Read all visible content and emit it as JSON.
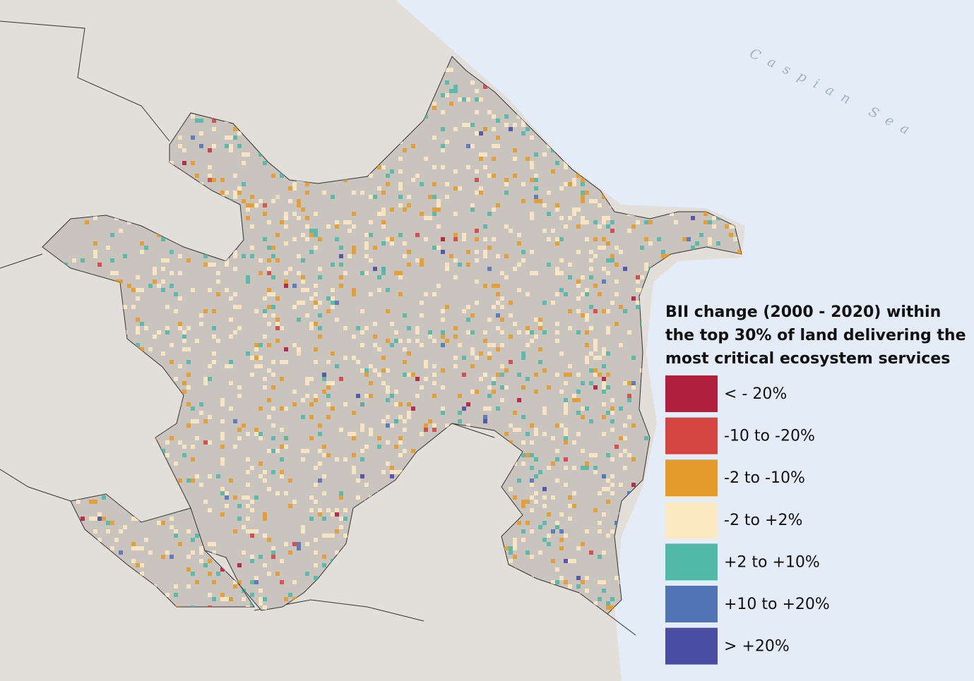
{
  "map": {
    "sea_label": "Caspian Sea",
    "legend": {
      "title": [
        "BII change (2000 - 2020) within",
        "the top 30% of land delivering the",
        "most critical ecosystem services"
      ],
      "items": [
        {
          "label": "< - 20%",
          "color": "#b01f3e"
        },
        {
          "label": "-10 to -20%",
          "color": "#d44541"
        },
        {
          "label": "-2 to -10%",
          "color": "#e59b2a"
        },
        {
          "label": "-2 to +2%",
          "color": "#fbe9c4"
        },
        {
          "label": "+2 to +10%",
          "color": "#52b8a8"
        },
        {
          "label": "+10 to +20%",
          "color": "#5474b8"
        },
        {
          "label": "> +20%",
          "color": "#4b4da3"
        }
      ]
    }
  }
}
